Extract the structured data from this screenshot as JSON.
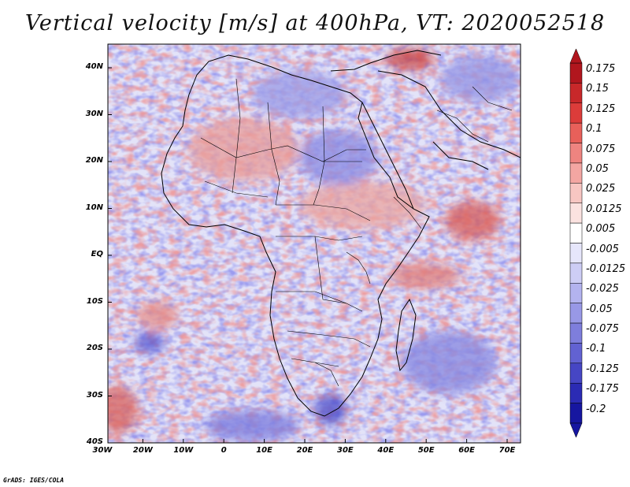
{
  "title": "Vertical velocity [m/s] at 400hPa, VT: 2020052518",
  "credit": "GrADS: IGES/COLA",
  "lat_labels": [
    "40N",
    "30N",
    "20N",
    "10N",
    "EQ",
    "10S",
    "20S",
    "30S",
    "40S"
  ],
  "lon_labels": [
    "30W",
    "20W",
    "10W",
    "0",
    "10E",
    "20E",
    "30E",
    "40E",
    "50E",
    "60E",
    "70E"
  ],
  "colorbar": {
    "labels": [
      "0.175",
      "0.15",
      "0.125",
      "0.1",
      "0.075",
      "0.05",
      "0.025",
      "0.0125",
      "0.005",
      "-0.005",
      "-0.0125",
      "-0.025",
      "-0.05",
      "-0.075",
      "-0.1",
      "-0.125",
      "-0.175",
      "-0.2"
    ],
    "colors": [
      "#b1161e",
      "#c8282a",
      "#dc3c3a",
      "#e8605a",
      "#ee8480",
      "#f3a6a2",
      "#f7c6c2",
      "#fbe2e0",
      "#ffffff",
      "#e6e6fb",
      "#cdcdf5",
      "#b3b3ef",
      "#9898e6",
      "#7e7edc",
      "#6262d2",
      "#4646c4",
      "#2b2bb4",
      "#1616a0"
    ]
  },
  "colors": {
    "positive": "#d24b4b",
    "negative": "#5050d2",
    "border": "#000000"
  }
}
